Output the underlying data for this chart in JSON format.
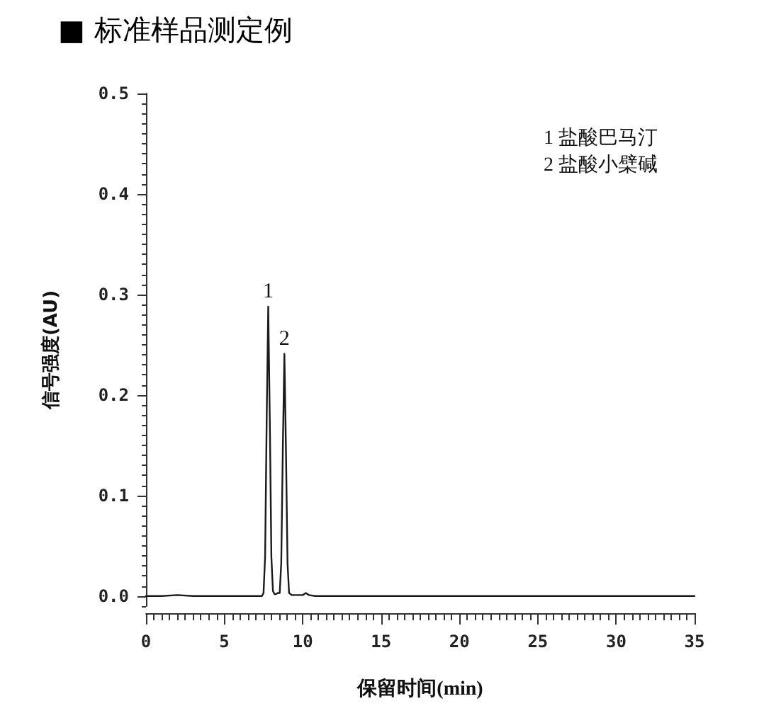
{
  "chart_data": {
    "type": "line",
    "title": "■ 标准样品测定例",
    "xlabel": "保留时间(min)",
    "ylabel": "信号强度(AU)",
    "annotations": [
      "1 盐酸巴马汀",
      "2 盐酸小檗碱",
      {
        "text": "1",
        "x": 7.8,
        "y": 0.288
      },
      {
        "text": "2",
        "x": 8.83,
        "y": 0.241
      }
    ],
    "x": [
      0,
      1,
      2,
      3,
      4,
      5,
      6,
      7,
      7.4,
      7.5,
      7.6,
      7.7,
      7.8,
      7.9,
      8.0,
      8.1,
      8.2,
      8.3,
      8.4,
      8.53,
      8.63,
      8.73,
      8.83,
      8.93,
      9.03,
      9.13,
      9.3,
      9.6,
      10.0,
      10.2,
      10.4,
      10.8,
      12,
      15,
      20,
      25,
      30,
      35
    ],
    "values": [
      0,
      0,
      0.001,
      0,
      0,
      0,
      0,
      0,
      0,
      0.003,
      0.039,
      0.175,
      0.288,
      0.175,
      0.039,
      0.005,
      0.002,
      0.002,
      0.003,
      0.003,
      0.033,
      0.146,
      0.241,
      0.146,
      0.033,
      0.003,
      0.001,
      0.001,
      0.001,
      0.003,
      0.001,
      0,
      0,
      0,
      0,
      0,
      0,
      0
    ],
    "color": "#1a1a1a",
    "marker": "none",
    "line_style": "solid",
    "grid": false,
    "xlim": [
      0,
      35
    ],
    "xticks": [
      0,
      {
        "value": 0.5,
        "label": null
      },
      {
        "value": 1,
        "label": null
      },
      {
        "value": 1.5,
        "label": null
      },
      {
        "value": 2,
        "label": null
      },
      {
        "value": 2.5,
        "label": null
      },
      {
        "value": 3,
        "label": null
      },
      {
        "value": 3.5,
        "label": null
      },
      {
        "value": 4,
        "label": null
      },
      {
        "value": 4.5,
        "label": null
      },
      5,
      {
        "value": 5.5,
        "label": null
      },
      {
        "value": 6,
        "label": null
      },
      {
        "value": 6.5,
        "label": null
      },
      {
        "value": 7,
        "label": null
      },
      {
        "value": 7.5,
        "label": null
      },
      {
        "value": 8,
        "label": null
      },
      {
        "value": 8.5,
        "label": null
      },
      {
        "value": 9,
        "label": null
      },
      {
        "value": 9.5,
        "label": null
      },
      10,
      {
        "value": 10.5,
        "label": null
      },
      {
        "value": 11,
        "label": null
      },
      {
        "value": 11.5,
        "label": null
      },
      {
        "value": 12,
        "label": null
      },
      {
        "value": 12.5,
        "label": null
      },
      {
        "value": 13,
        "label": null
      },
      {
        "value": 13.5,
        "label": null
      },
      {
        "value": 14,
        "label": null
      },
      {
        "value": 14.5,
        "label": null
      },
      15,
      {
        "value": 15.5,
        "label": null
      },
      {
        "value": 16,
        "label": null
      },
      {
        "value": 16.5,
        "label": null
      },
      {
        "value": 17,
        "label": null
      },
      {
        "value": 17.5,
        "label": null
      },
      {
        "value": 18,
        "label": null
      },
      {
        "value": 18.5,
        "label": null
      },
      {
        "value": 19,
        "label": null
      },
      {
        "value": 19.5,
        "label": null
      },
      20,
      {
        "value": 20.5,
        "label": null
      },
      {
        "value": 21,
        "label": null
      },
      {
        "value": 21.5,
        "label": null
      },
      {
        "value": 22,
        "label": null
      },
      {
        "value": 22.5,
        "label": null
      },
      {
        "value": 23,
        "label": null
      },
      {
        "value": 23.5,
        "label": null
      },
      {
        "value": 24,
        "label": null
      },
      {
        "value": 24.5,
        "label": null
      },
      25,
      {
        "value": 25.5,
        "label": null
      },
      {
        "value": 26,
        "label": null
      },
      {
        "value": 26.5,
        "label": null
      },
      {
        "value": 27,
        "label": null
      },
      {
        "value": 27.5,
        "label": null
      },
      {
        "value": 28,
        "label": null
      },
      {
        "value": 28.5,
        "label": null
      },
      {
        "value": 29,
        "label": null
      },
      {
        "value": 29.5,
        "label": null
      },
      30,
      {
        "value": 30.5,
        "label": null
      },
      {
        "value": 31,
        "label": null
      },
      {
        "value": 31.5,
        "label": null
      },
      {
        "value": 32,
        "label": null
      },
      {
        "value": 32.5,
        "label": null
      },
      {
        "value": 33,
        "label": null
      },
      {
        "value": 33.5,
        "label": null
      },
      {
        "value": 34,
        "label": null
      },
      {
        "value": 34.5,
        "label": null
      },
      35
    ],
    "ylim": [
      -0.01,
      0.5
    ],
    "yticks": [
      {
        "value": -0.01,
        "label": null
      },
      {
        "value": 0,
        "label": "0.0"
      },
      {
        "value": 0.01,
        "label": null
      },
      {
        "value": 0.02,
        "label": null
      },
      {
        "value": 0.03,
        "label": null
      },
      {
        "value": 0.04,
        "label": null
      },
      {
        "value": 0.05,
        "label": null
      },
      {
        "value": 0.06,
        "label": null
      },
      {
        "value": 0.07,
        "label": null
      },
      {
        "value": 0.08,
        "label": null
      },
      {
        "value": 0.09,
        "label": null
      },
      0.1,
      {
        "value": 0.11,
        "label": null
      },
      {
        "value": 0.12,
        "label": null
      },
      {
        "value": 0.13,
        "label": null
      },
      {
        "value": 0.14,
        "label": null
      },
      {
        "value": 0.15,
        "label": null
      },
      {
        "value": 0.16,
        "label": null
      },
      {
        "value": 0.17,
        "label": null
      },
      {
        "value": 0.18,
        "label": null
      },
      {
        "value": 0.19,
        "label": null
      },
      0.2,
      {
        "value": 0.21,
        "label": null
      },
      {
        "value": 0.22,
        "label": null
      },
      {
        "value": 0.23,
        "label": null
      },
      {
        "value": 0.24,
        "label": null
      },
      {
        "value": 0.25,
        "label": null
      },
      {
        "value": 0.26,
        "label": null
      },
      {
        "value": 0.27,
        "label": null
      },
      {
        "value": 0.28,
        "label": null
      },
      {
        "value": 0.29,
        "label": null
      },
      0.3,
      {
        "value": 0.31,
        "label": null
      },
      {
        "value": 0.32,
        "label": null
      },
      {
        "value": 0.33,
        "label": null
      },
      {
        "value": 0.34,
        "label": null
      },
      {
        "value": 0.35,
        "label": null
      },
      {
        "value": 0.36,
        "label": null
      },
      {
        "value": 0.37,
        "label": null
      },
      {
        "value": 0.38,
        "label": null
      },
      {
        "value": 0.39,
        "label": null
      },
      0.4,
      {
        "value": 0.41,
        "label": null
      },
      {
        "value": 0.42,
        "label": null
      },
      {
        "value": 0.43,
        "label": null
      },
      {
        "value": 0.44,
        "label": null
      },
      {
        "value": 0.45,
        "label": null
      },
      {
        "value": 0.46,
        "label": null
      },
      {
        "value": 0.47,
        "label": null
      },
      {
        "value": 0.48,
        "label": null
      },
      {
        "value": 0.49,
        "label": null
      },
      0.5
    ]
  }
}
